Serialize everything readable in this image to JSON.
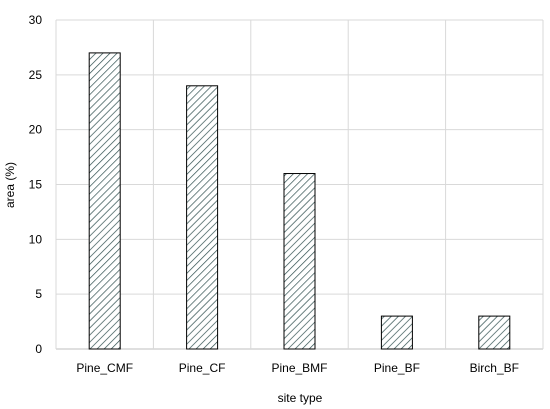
{
  "chart_data": {
    "type": "bar",
    "categories": [
      "Pine_CMF",
      "Pine_CF",
      "Pine_BMF",
      "Pine_BF",
      "Birch_BF"
    ],
    "values": [
      27,
      24,
      16,
      3,
      3
    ],
    "title": "",
    "xlabel": "site type",
    "ylabel": "area (%)",
    "ylim": [
      0,
      30
    ],
    "yticks": [
      0,
      5,
      10,
      15,
      20,
      25,
      30
    ],
    "grid": true,
    "bar_fill": "diagonal hatch",
    "colors": {
      "bar_stroke": "#000000",
      "hatch": "#2f4f4f",
      "grid": "#d9d9d9",
      "axis": "#bfbfbf"
    }
  }
}
